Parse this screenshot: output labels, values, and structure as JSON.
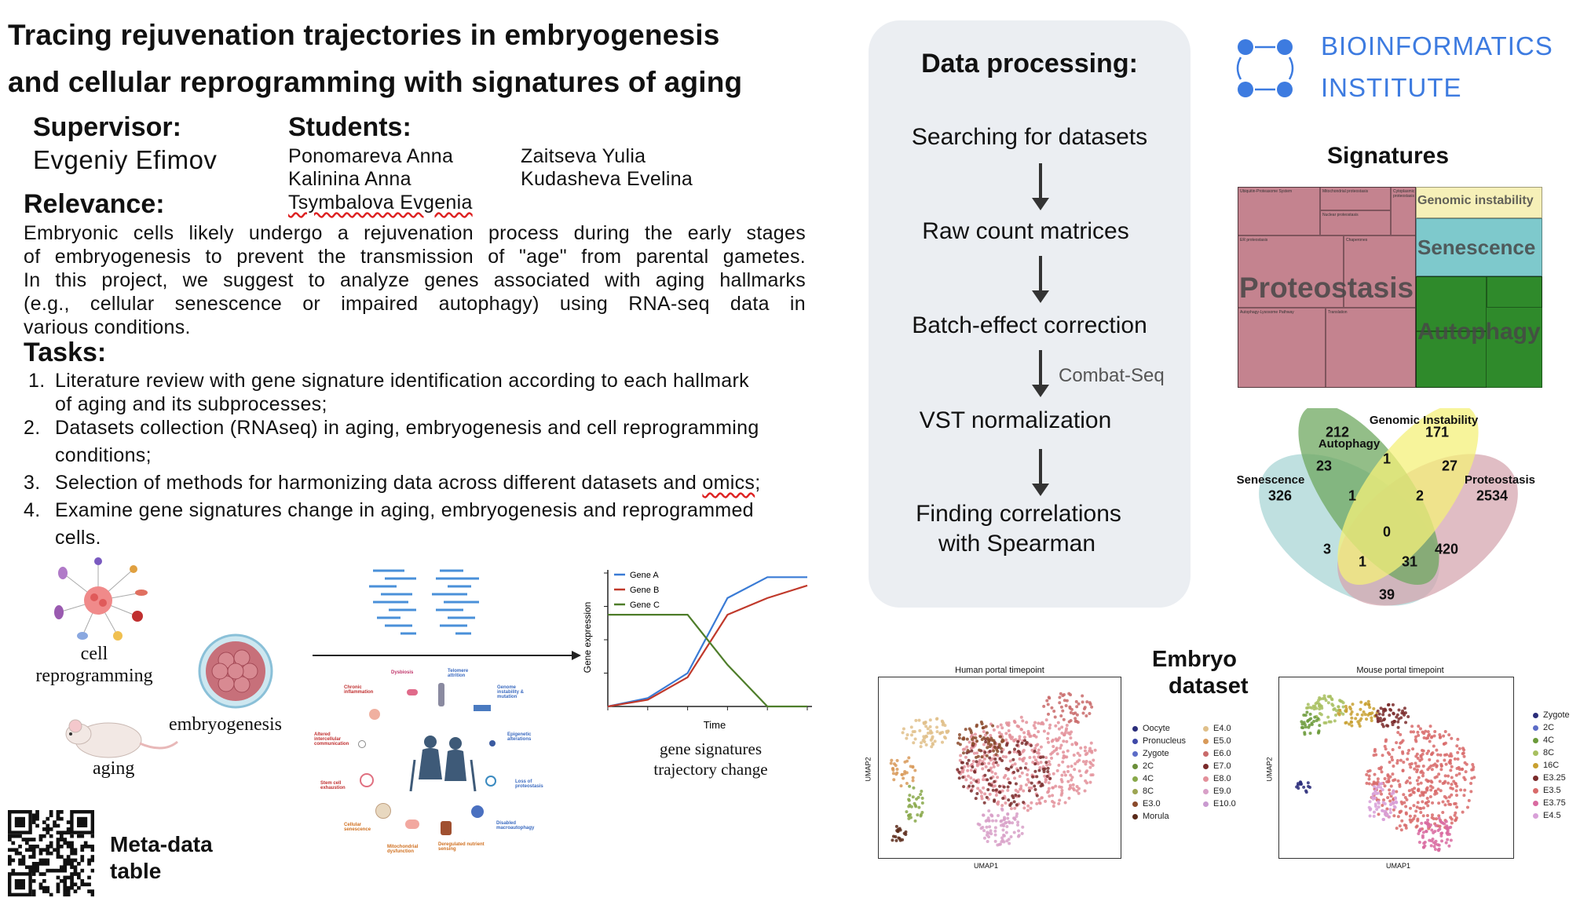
{
  "title": {
    "line1": "Tracing rejuvenation trajectories in embryogenesis",
    "line2": "and cellular reprogramming with signatures of aging"
  },
  "supervisor": {
    "label": "Supervisor:",
    "name": "Evgeniy Efimov"
  },
  "students": {
    "label": "Students:",
    "names": [
      "Ponomareva Anna",
      "Kalinina Anna",
      "Tsymbalova Evgenia",
      "Zaitseva Yulia",
      "Kudasheva Evelina"
    ]
  },
  "relevance": {
    "label": "Relevance:",
    "lines": [
      "Embryonic cells likely undergo a rejuvenation process during the early stages",
      "of embryogenesis to prevent the transmission of \"age\" from parental gametes.",
      "In this project, we suggest to analyze genes associated with aging hallmarks",
      "(e.g., cellular senescence or impaired autophagy) using RNA-seq data in",
      "various conditions."
    ]
  },
  "tasks": {
    "label": "Tasks:",
    "items": [
      {
        "num": "1.",
        "line1": "Literature review with gene signature identification according to each hallmark",
        "line2": "of aging and its subprocesses;"
      },
      {
        "num": "2.",
        "line1": "Datasets collection (RNAseq) in aging, embryogenesis and cell reprogramming",
        "line2": "conditions;"
      },
      {
        "num": "3.",
        "line1a": "Selection of methods for harmonizing data across different datasets and ",
        "line1b": "omics",
        "line1c": ";"
      },
      {
        "num": "4.",
        "line1": "Examine gene signatures change in aging, embryogenesis and reprogrammed",
        "line2": "cells."
      }
    ]
  },
  "figure": {
    "cell_reprogramming_l1": "cell",
    "cell_reprogramming_l2": "reprogramming",
    "embryogenesis": "embryogenesis",
    "aging": "aging",
    "hallmarks": [
      "Dysbiosis",
      "Telomere attrition",
      "Genome instability & mutation",
      "Epigenetic alterations",
      "Loss of proteostasis",
      "Disabled macroautophagy",
      "Deregulated nutrient sensing",
      "Mitochondrial dysfunction",
      "Cellular senescence",
      "Stem cell exhaustion",
      "Altered intercellular communication",
      "Chronic inflammation"
    ],
    "trajectory_caption_l1": "gene signatures",
    "trajectory_caption_l2": "trajectory change"
  },
  "chart_data": {
    "type": "line",
    "title": "",
    "xlabel": "Time",
    "ylabel": "Gene expression",
    "x": [
      0,
      1,
      2,
      3,
      4,
      5
    ],
    "series": [
      {
        "name": "Gene A",
        "color": "#3a7bd5",
        "values": [
          0.0,
          0.1,
          0.4,
          1.3,
          1.55,
          1.55
        ]
      },
      {
        "name": "Gene B",
        "color": "#c0392b",
        "values": [
          0.0,
          0.08,
          0.35,
          1.1,
          1.3,
          1.45
        ]
      },
      {
        "name": "Gene C",
        "color": "#4e7d2a",
        "values": [
          1.1,
          1.1,
          1.1,
          0.5,
          0.0,
          0.0
        ]
      }
    ],
    "ylim": [
      0,
      1.6
    ],
    "grid": false,
    "legend": "top-left"
  },
  "meta": {
    "l1": "Meta-data",
    "l2": "table"
  },
  "processing": {
    "title": "Data processing:",
    "steps": [
      "Searching for datasets",
      "Raw count matrices",
      "Batch-effect correction",
      "VST normalization",
      "Finding correlations",
      "with Spearman"
    ],
    "combat_label": "Combat-Seq"
  },
  "institute": {
    "line1": "BIOINFORMATICS",
    "line2": "INSTITUTE",
    "color": "#3d7be0"
  },
  "signatures": {
    "title": "Signatures",
    "treemap": {
      "proteostasis": "Proteostasis",
      "senescence": "Senescence",
      "autophagy": "Autophagy",
      "genomic": "Genomic instability",
      "small_labels": [
        "Ubiquitin-Proteasome System",
        "Mitochondrial proteostasis",
        "Nuclear proteostasis",
        "ER proteostasis",
        "Autophagy-Lysosome Pathway",
        "Translation",
        "Cytoplasmic proteostasis",
        "Chaperones"
      ]
    },
    "colors": {
      "proteostasis": "#c4838f",
      "senescence": "#7ec9cc",
      "autophagy": "#2f8a2b",
      "genomic": "#f6f0b8"
    }
  },
  "venn": {
    "sets": [
      {
        "name": "Senescence",
        "count": "326",
        "color": "#a9d6d6"
      },
      {
        "name": "Autophagy",
        "count": "212",
        "color": "#6fa860"
      },
      {
        "name": "Genomic Instability",
        "count": "171",
        "color": "#f4f07a"
      },
      {
        "name": "Proteostasis",
        "count": "2534",
        "color": "#d6a7b0"
      }
    ],
    "regions": [
      "23",
      "1",
      "27",
      "1",
      "2",
      "0",
      "3",
      "1",
      "31",
      "420",
      "39"
    ]
  },
  "embryo": {
    "title_l1": "Embryo",
    "title_l2": "dataset",
    "human": {
      "title": "Human portal timepoint",
      "xlabel": "UMAP1",
      "ylabel": "UMAP2",
      "legend_col1": [
        "Oocyte",
        "Pronucleus",
        "Zygote",
        "2C",
        "4C",
        "8C",
        "E3.0",
        "Morula"
      ],
      "legend_col2": [
        "E4.0",
        "E5.0",
        "E6.0",
        "E7.0",
        "E8.0",
        "E9.0",
        "E10.0"
      ],
      "colors_col1": [
        "#2b2d7a",
        "#3f49a8",
        "#5c6cc7",
        "#6b8f3a",
        "#88a84a",
        "#9da552",
        "#8b4a2b",
        "#5a2a1a"
      ],
      "colors_col2": [
        "#e0c08a",
        "#d89a5a",
        "#c96a6a",
        "#7a2b2b",
        "#e3909a",
        "#d8a0c8",
        "#c99ad0"
      ]
    },
    "mouse": {
      "title": "Mouse portal timepoint",
      "xlabel": "UMAP1",
      "ylabel": "UMAP2",
      "legend": [
        "Zygote",
        "2C",
        "4C",
        "8C",
        "16C",
        "E3.25",
        "E3.5",
        "E3.75",
        "E4.5"
      ],
      "colors": [
        "#2b2d7a",
        "#5c6cc7",
        "#6b9a3a",
        "#a8c060",
        "#c8a030",
        "#7a2b2b",
        "#d86a6a",
        "#d96aa0",
        "#d8a0d8"
      ]
    }
  }
}
